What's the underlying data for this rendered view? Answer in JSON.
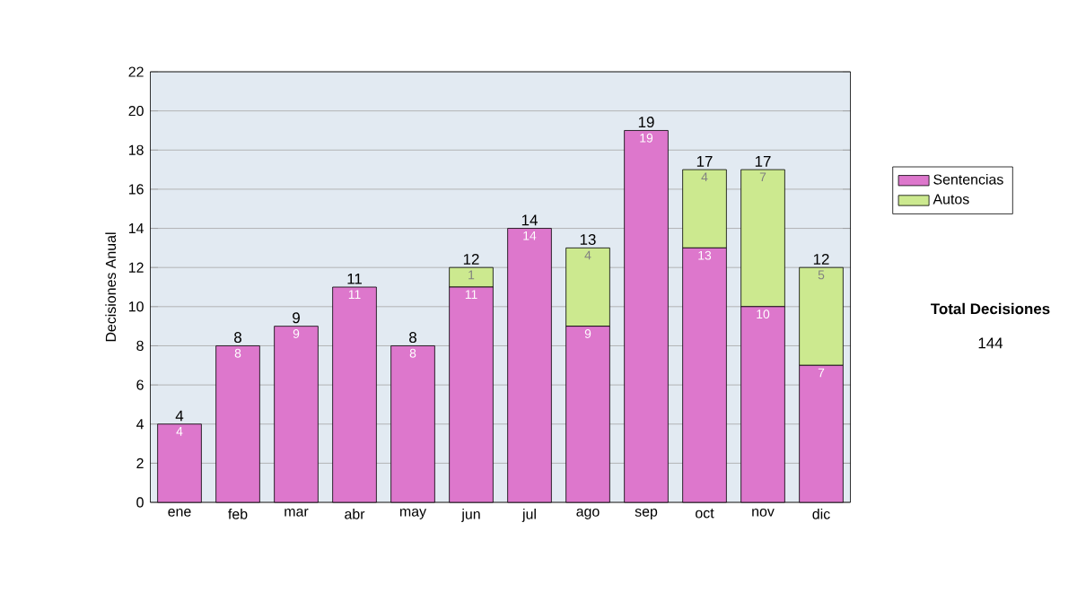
{
  "chart_data": {
    "type": "bar",
    "stacked": true,
    "ylabel": "Decisiones Anual",
    "categories": [
      "ene",
      "feb",
      "mar",
      "abr",
      "may",
      "jun",
      "jul",
      "ago",
      "sep",
      "oct",
      "nov",
      "dic"
    ],
    "series": [
      {
        "name": "Sentencias",
        "color": "#dd77cc",
        "values": [
          4,
          8,
          9,
          11,
          8,
          11,
          14,
          9,
          19,
          13,
          10,
          7
        ],
        "value_labels": [
          "4",
          "8",
          "9",
          "11",
          "8",
          "11",
          "14",
          "9",
          "19",
          "13",
          "10",
          "7"
        ]
      },
      {
        "name": "Autos",
        "color": "#cce98f",
        "values": [
          0,
          0,
          0,
          0,
          0,
          1,
          0,
          4,
          0,
          4,
          7,
          5
        ],
        "value_labels": [
          null,
          null,
          null,
          null,
          null,
          "1",
          null,
          "4",
          null,
          "4",
          "7",
          "5"
        ]
      }
    ],
    "totals": [
      "4",
      "8",
      "9",
      "11",
      "8",
      "12",
      "14",
      "13",
      "19",
      "17",
      "17",
      "12"
    ],
    "ylim": [
      0,
      22
    ],
    "yticks": [
      0,
      2,
      4,
      6,
      8,
      10,
      12,
      14,
      16,
      18,
      20,
      22
    ],
    "grid": "y",
    "legend": "right",
    "annotations": [
      "Total Decisiones",
      "144"
    ]
  }
}
